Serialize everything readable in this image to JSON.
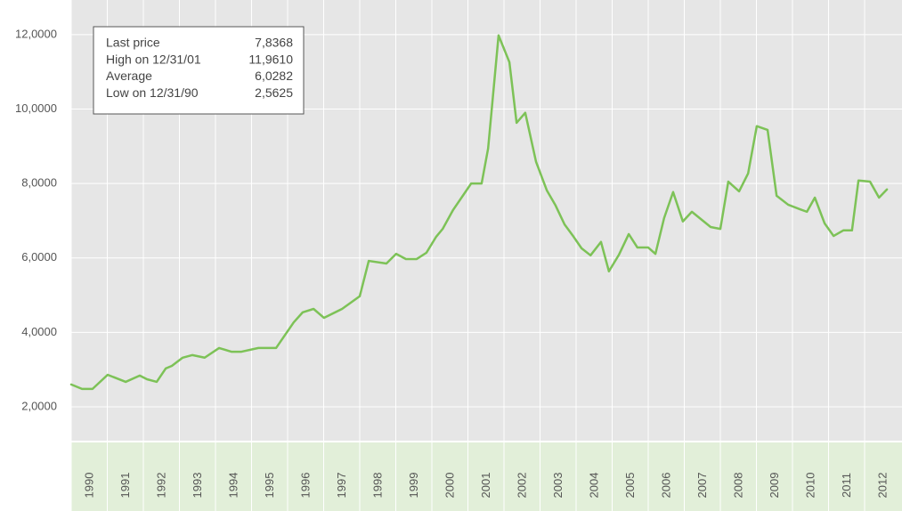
{
  "chart_data": {
    "type": "line",
    "xlim": [
      1990,
      2013
    ],
    "xticks": [
      1990,
      1991,
      1992,
      1993,
      1994,
      1995,
      1996,
      1997,
      1998,
      1999,
      2000,
      2001,
      2002,
      2003,
      2004,
      2005,
      2006,
      2007,
      2008,
      2009,
      2010,
      2011,
      2012
    ],
    "ylim": [
      1.09,
      12.93
    ],
    "yticks": [
      {
        "value": 2,
        "label": "2,0000"
      },
      {
        "value": 4,
        "label": "4,0000"
      },
      {
        "value": 6,
        "label": "6,0000"
      },
      {
        "value": 8,
        "label": "8,0000"
      },
      {
        "value": 10,
        "label": "10,0000"
      },
      {
        "value": 12,
        "label": "12,0000"
      }
    ],
    "grid": true,
    "x": [
      1990.0,
      1990.3,
      1990.59,
      1991.01,
      1991.51,
      1991.9,
      1992.1,
      1992.37,
      1992.62,
      1992.79,
      1993.09,
      1993.36,
      1993.7,
      1994.1,
      1994.44,
      1994.72,
      1995.19,
      1995.68,
      1996.17,
      1996.42,
      1996.72,
      1997.01,
      1997.51,
      1998.0,
      1998.25,
      1998.74,
      1999.01,
      1999.28,
      1999.58,
      1999.85,
      2000.12,
      2000.3,
      2000.59,
      2001.09,
      2001.38,
      2001.56,
      2001.85,
      2002.15,
      2002.35,
      2002.59,
      2002.89,
      2003.19,
      2003.43,
      2003.68,
      2003.93,
      2004.15,
      2004.4,
      2004.69,
      2004.91,
      2005.19,
      2005.46,
      2005.7,
      2006.0,
      2006.2,
      2006.44,
      2006.69,
      2006.96,
      2007.21,
      2007.73,
      2008.0,
      2008.22,
      2008.52,
      2008.77,
      2009.01,
      2009.31,
      2009.56,
      2009.88,
      2010.2,
      2010.4,
      2010.62,
      2010.89,
      2011.14,
      2011.41,
      2011.65,
      2011.83,
      2012.15,
      2012.4,
      2012.62
    ],
    "series": [
      {
        "color": "#7dc257",
        "values": [
          2.6,
          2.48,
          2.48,
          2.86,
          2.67,
          2.84,
          2.74,
          2.67,
          3.03,
          3.1,
          3.32,
          3.39,
          3.32,
          3.58,
          3.48,
          3.48,
          3.58,
          3.58,
          4.27,
          4.54,
          4.63,
          4.39,
          4.63,
          4.97,
          5.92,
          5.85,
          6.11,
          5.97,
          5.97,
          6.14,
          6.57,
          6.78,
          7.29,
          8.0,
          8.0,
          8.94,
          11.98,
          11.26,
          9.63,
          9.9,
          8.58,
          7.81,
          7.41,
          6.9,
          6.57,
          6.26,
          6.07,
          6.43,
          5.64,
          6.09,
          6.64,
          6.28,
          6.28,
          6.11,
          7.07,
          7.77,
          6.98,
          7.24,
          6.83,
          6.78,
          8.05,
          7.79,
          8.27,
          9.54,
          9.44,
          7.67,
          7.43,
          7.31,
          7.24,
          7.62,
          6.93,
          6.59,
          6.74,
          6.74,
          8.08,
          8.05,
          7.62,
          7.84
        ]
      }
    ],
    "annotations": [
      {
        "label": "Last price",
        "value": "7,8368"
      },
      {
        "label": "High on 12/31/01",
        "value": "11,9610"
      },
      {
        "label": "Average",
        "value": "6,0282"
      },
      {
        "label": "Low on 12/31/90",
        "value": "2,5625"
      }
    ]
  }
}
